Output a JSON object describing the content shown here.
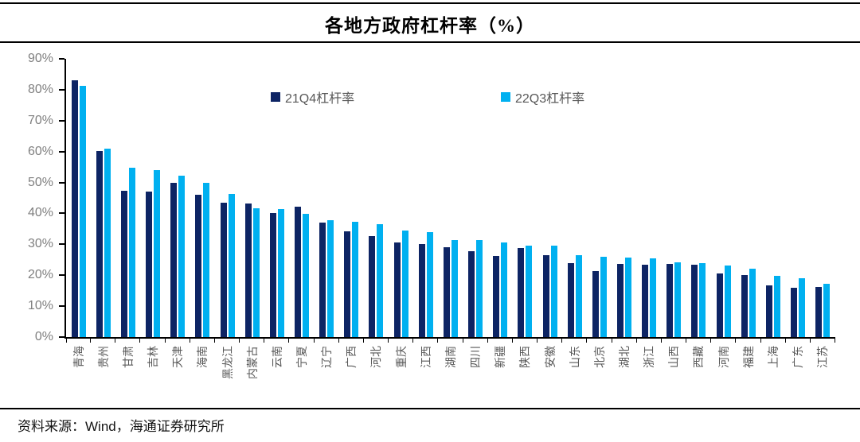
{
  "page": {
    "source": "资料来源：Wind，海通证券研究所"
  },
  "chart_data": {
    "type": "bar",
    "title": "各地方政府杠杆率（%）",
    "categories": [
      "青海",
      "贵州",
      "甘肃",
      "吉林",
      "天津",
      "海南",
      "黑龙江",
      "内蒙古",
      "云南",
      "宁夏",
      "辽宁",
      "广西",
      "河北",
      "重庆",
      "江西",
      "湖南",
      "四川",
      "新疆",
      "陕西",
      "安徽",
      "山东",
      "北京",
      "湖北",
      "浙江",
      "山西",
      "西藏",
      "河南",
      "福建",
      "上海",
      "广东",
      "江苏"
    ],
    "series": [
      {
        "name": "21Q4杠杆率",
        "color": "#0D2464",
        "values": [
          83.1,
          60.3,
          47.4,
          47.0,
          50.0,
          46.1,
          43.5,
          43.1,
          40.0,
          42.1,
          37.0,
          34.3,
          32.6,
          30.5,
          30.0,
          29.1,
          27.9,
          26.2,
          28.7,
          26.6,
          23.8,
          21.4,
          23.6,
          23.3,
          23.6,
          23.4,
          20.6,
          20.1,
          16.7,
          16.0,
          16.1
        ]
      },
      {
        "name": "22Q3杠杆率",
        "color": "#00B0F0",
        "values": [
          81.2,
          61.0,
          54.9,
          54.1,
          52.3,
          50.0,
          46.3,
          41.7,
          41.5,
          39.8,
          37.8,
          37.2,
          36.5,
          34.4,
          33.9,
          31.4,
          31.3,
          30.7,
          29.7,
          29.6,
          26.4,
          26.1,
          25.7,
          25.5,
          24.3,
          23.8,
          23.2,
          22.0,
          19.9,
          19.1,
          17.2
        ]
      }
    ],
    "xlabel": "",
    "ylabel": "",
    "ylim": [
      0,
      90
    ],
    "yticks": [
      {
        "value": 90,
        "label": "90%"
      },
      {
        "value": 80,
        "label": "80%"
      },
      {
        "value": 70,
        "label": "70%"
      },
      {
        "value": 60,
        "label": "60%"
      },
      {
        "value": 50,
        "label": "50%"
      },
      {
        "value": 40,
        "label": "40%"
      },
      {
        "value": 30,
        "label": "30%"
      },
      {
        "value": 20,
        "label": "20%"
      },
      {
        "value": 10,
        "label": "10%"
      },
      {
        "value": 0,
        "label": "0%"
      }
    ],
    "grid": false,
    "legend_position": "inside-top",
    "category_label_rotation": -90
  }
}
